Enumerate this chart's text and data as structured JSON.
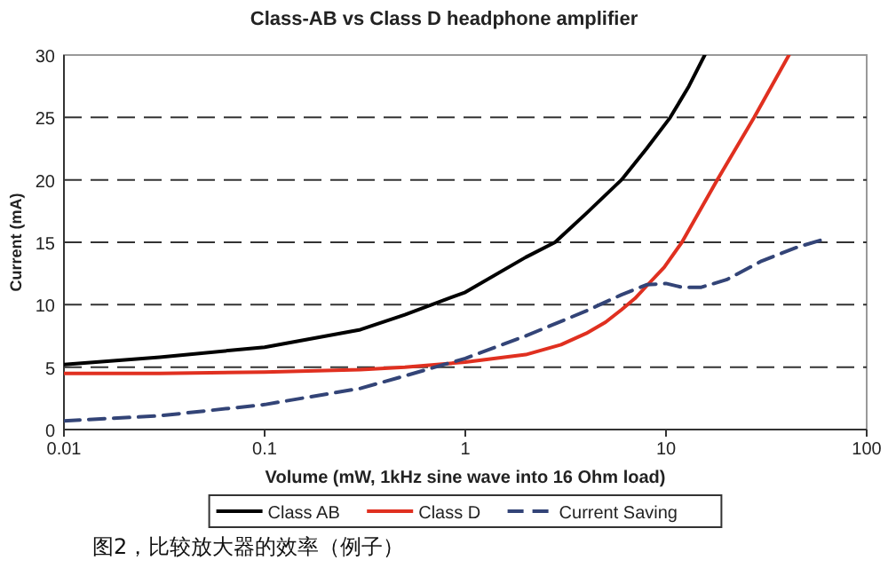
{
  "chart_data": {
    "type": "line",
    "title": "Class-AB vs Class D headphone amplifier",
    "xlabel": "Volume (mW, 1kHz sine wave into 16 Ohm load)",
    "ylabel": "Current (mA)",
    "log": "x",
    "xlim": [
      0.01,
      100
    ],
    "xticks": [
      0.01,
      0.1,
      1,
      10,
      100
    ],
    "ylim": [
      0,
      30
    ],
    "yticks": [
      0,
      5,
      10,
      15,
      20,
      25,
      30
    ],
    "grid": "y",
    "legend": "bottom",
    "series": [
      {
        "name": "Class AB",
        "color": "#000000",
        "line_style": "solid",
        "x": [
          0.01,
          0.03,
          0.1,
          0.3,
          0.5,
          1,
          2,
          2.8,
          4,
          6,
          8,
          10.5,
          13,
          15.6
        ],
        "values": [
          5.2,
          5.8,
          6.6,
          8,
          9.2,
          11,
          13.8,
          15,
          17.3,
          20,
          22.5,
          25,
          27.5,
          30
        ]
      },
      {
        "name": "Class D",
        "color": "#e03020",
        "line_style": "solid",
        "x": [
          0.01,
          0.03,
          0.1,
          0.3,
          0.5,
          1,
          2,
          3,
          4,
          5,
          6,
          7,
          8,
          9.8,
          12,
          18,
          27.5,
          41
        ],
        "values": [
          4.5,
          4.5,
          4.6,
          4.8,
          5,
          5.4,
          6,
          6.8,
          7.7,
          8.6,
          9.6,
          10.5,
          11.5,
          13,
          15,
          20,
          25,
          30
        ]
      },
      {
        "name": "Current Saving",
        "color": "#334477",
        "line_style": "dashed",
        "x": [
          0.01,
          0.03,
          0.1,
          0.3,
          0.5,
          1,
          2,
          4,
          6,
          8,
          10,
          12,
          15,
          20,
          30,
          45,
          60
        ],
        "values": [
          0.7,
          1.1,
          2,
          3.3,
          4.3,
          5.7,
          7.5,
          9.5,
          10.8,
          11.6,
          11.7,
          11.4,
          11.4,
          12,
          13.5,
          14.6,
          15.2
        ]
      }
    ],
    "annotations": [
      "图2，比较放大器的效率（例子）"
    ]
  }
}
